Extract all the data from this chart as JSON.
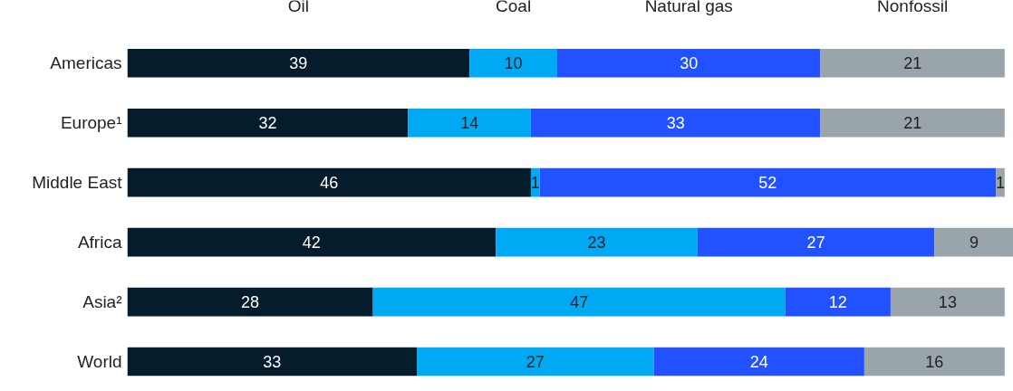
{
  "chart_data": {
    "type": "bar",
    "orientation": "horizontal",
    "stacked": true,
    "categories": [
      "Americas",
      "Europe¹",
      "Middle East",
      "Africa",
      "Asia²",
      "World"
    ],
    "series": [
      {
        "name": "Oil",
        "color": "#051c2c",
        "values": [
          39,
          32,
          46,
          42,
          28,
          33
        ]
      },
      {
        "name": "Coal",
        "color": "#00a9f4",
        "values": [
          10,
          14,
          1,
          23,
          47,
          27
        ]
      },
      {
        "name": "Natural gas",
        "color": "#2251ff",
        "values": [
          30,
          33,
          52,
          27,
          12,
          24
        ]
      },
      {
        "name": "Nonfossil",
        "color": "#9aa4ab",
        "values": [
          21,
          21,
          1,
          9,
          13,
          16
        ]
      }
    ],
    "xlim": [
      0,
      101
    ],
    "data_labels": true,
    "legend": "top",
    "grid": false,
    "tick_labels": "y"
  }
}
